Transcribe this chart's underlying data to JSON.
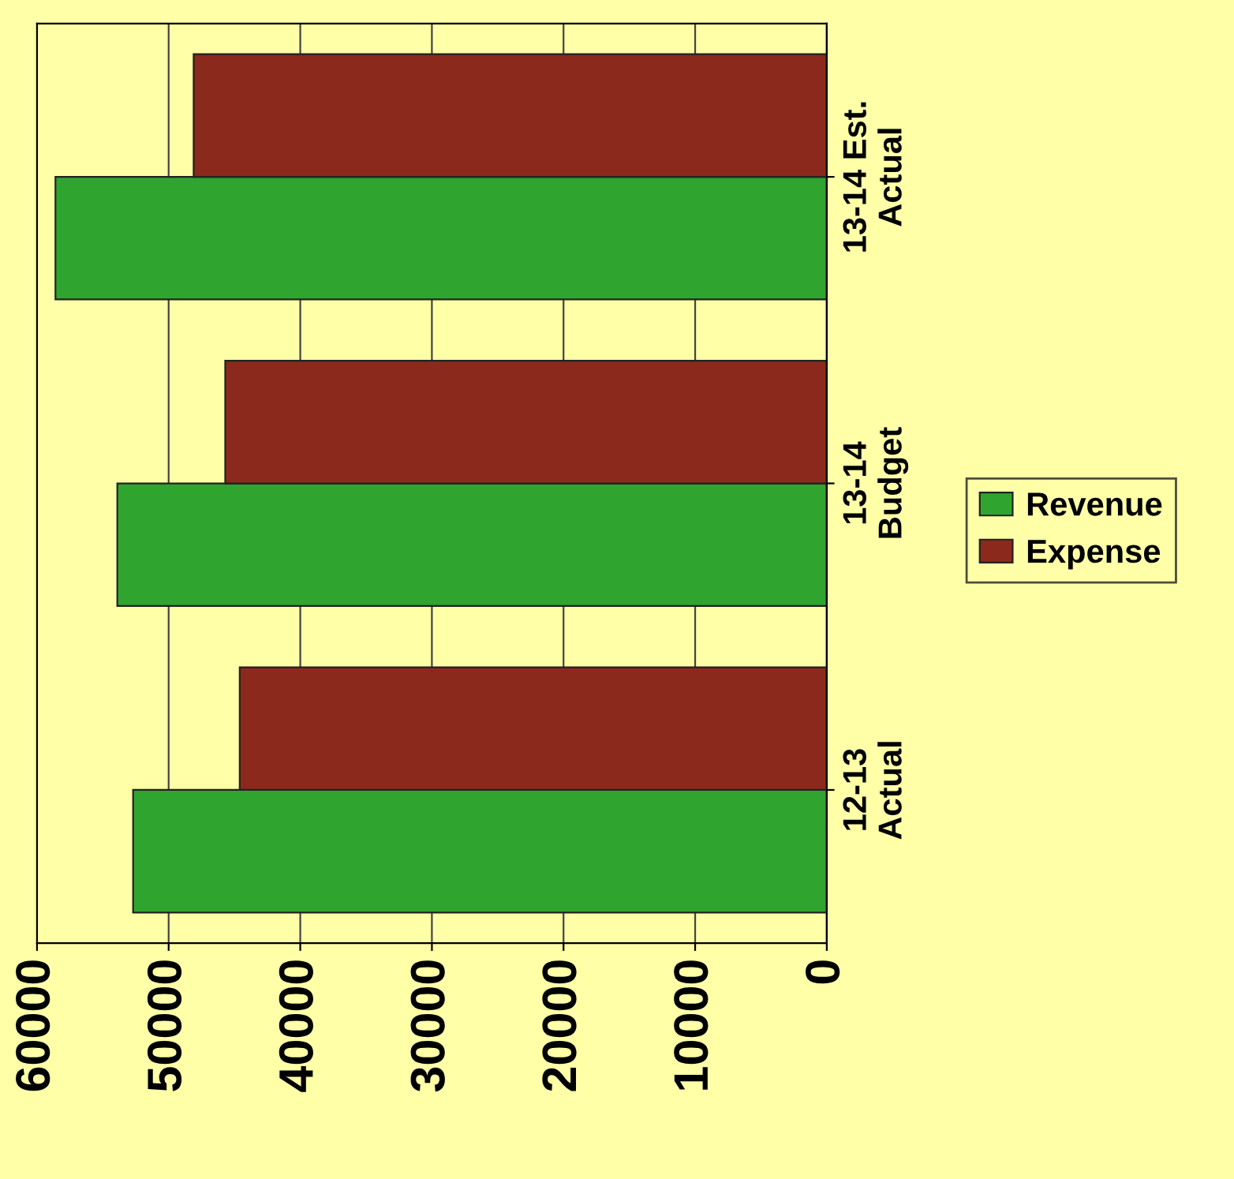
{
  "chart_data": {
    "type": "bar",
    "orientation": "horizontal",
    "categories": [
      "13-14 Est.\nActual",
      "13-14\nBudget",
      "12-13\nActual"
    ],
    "series": [
      {
        "name": "Revenue",
        "color": "#2fa52f",
        "values": [
          58600,
          53900,
          52700
        ]
      },
      {
        "name": "Expense",
        "color": "#8b2a1c",
        "values": [
          48100,
          45700,
          44600
        ]
      }
    ],
    "xlim": [
      60000,
      0
    ],
    "xticks": [
      0,
      10000,
      20000,
      30000,
      40000,
      50000,
      60000
    ],
    "grid": "x",
    "legend": "right"
  }
}
